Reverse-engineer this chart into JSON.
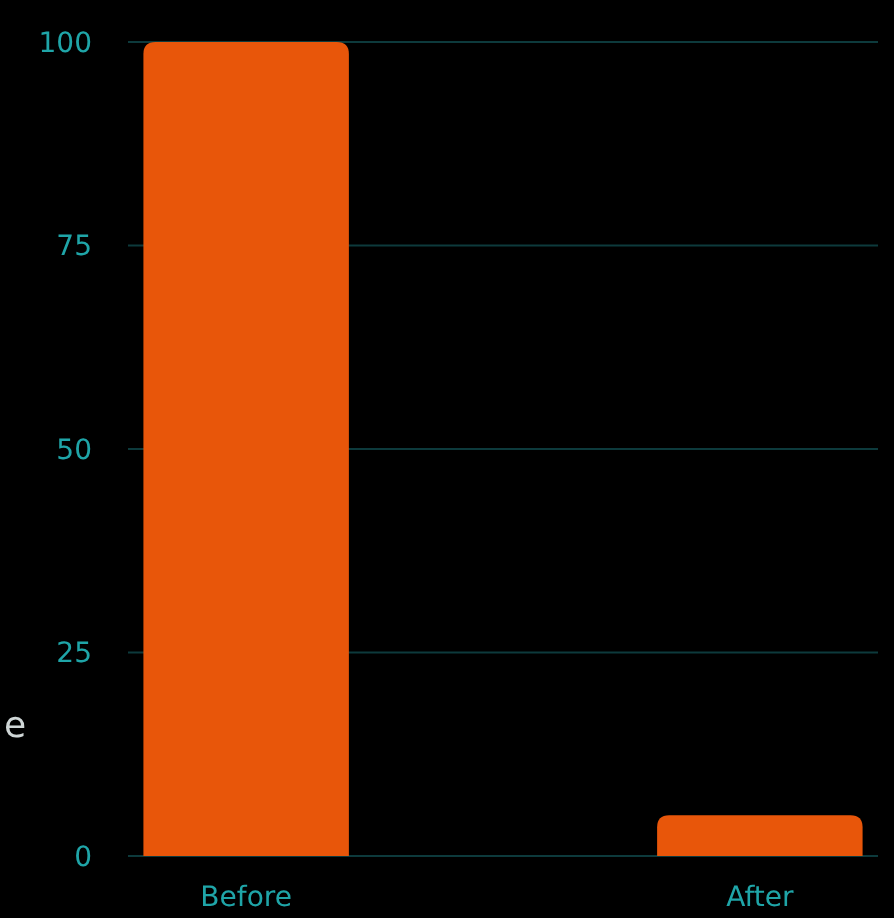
{
  "chart_data": {
    "type": "bar",
    "ylabel": "e",
    "categories": [
      "Before",
      "After"
    ],
    "values": [
      100,
      5
    ],
    "color": "#e8560a",
    "ylim": [
      0,
      100
    ],
    "yticks": [
      0,
      25,
      50,
      75,
      100
    ],
    "grid": "y"
  }
}
